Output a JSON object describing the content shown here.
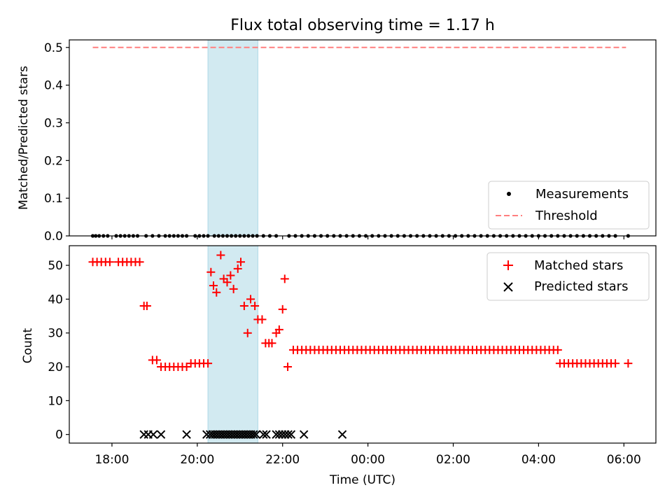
{
  "title": "Flux total observing time = 1.17 h",
  "colors": {
    "measurement": "#000000",
    "threshold": "#ff7f7f",
    "matched": "#ff0000",
    "predicted": "#000000",
    "highlight": "#add8e6"
  },
  "chart_data": [
    {
      "type": "scatter",
      "name": "ratio-panel",
      "ylabel": "Matched/Predicted stars",
      "xlabel": "",
      "xlim": [
        -1.0,
        12.75
      ],
      "ylim": [
        0.0,
        0.52
      ],
      "ytick_values": [
        0.0,
        0.1,
        0.2,
        0.3,
        0.4,
        0.5
      ],
      "ytick_labels": [
        "0.0",
        "0.1",
        "0.2",
        "0.3",
        "0.4",
        "0.5"
      ],
      "legend_location": "lower-right",
      "legend": [
        {
          "key": "measurements",
          "label": "Measurements"
        },
        {
          "key": "threshold",
          "label": "Threshold"
        }
      ],
      "threshold": {
        "value": 0.5,
        "x_start": -0.45,
        "x_end": 12.05
      },
      "highlight_span": [
        2.25,
        3.42
      ],
      "measurements": {
        "x": [
          -0.45,
          -0.38,
          -0.3,
          -0.2,
          -0.1,
          0.1,
          0.2,
          0.3,
          0.4,
          0.5,
          0.6,
          0.8,
          0.95,
          1.1,
          1.25,
          1.35,
          1.45,
          1.55,
          1.65,
          1.75,
          1.95,
          2.05,
          2.15,
          2.25,
          2.4,
          2.5,
          2.6,
          2.7,
          2.8,
          2.9,
          3.0,
          3.1,
          3.2,
          3.3,
          3.4,
          3.55,
          3.7,
          3.85,
          4.15,
          4.3,
          4.45,
          4.6,
          4.75,
          4.9,
          5.05,
          5.2,
          5.35,
          5.5,
          5.65,
          5.8,
          5.95,
          6.1,
          6.25,
          6.4,
          6.55,
          6.7,
          6.85,
          7.0,
          7.15,
          7.3,
          7.45,
          7.6,
          7.75,
          7.9,
          8.05,
          8.2,
          8.35,
          8.5,
          8.65,
          8.8,
          8.95,
          9.1,
          9.25,
          9.4,
          9.55,
          9.7,
          9.85,
          10.0,
          10.15,
          10.3,
          10.45,
          10.6,
          10.75,
          10.9,
          11.05,
          11.2,
          11.35,
          11.5,
          11.65,
          11.8,
          12.1
        ],
        "y": [
          0,
          0,
          0,
          0,
          0,
          0,
          0,
          0,
          0,
          0,
          0,
          0,
          0,
          0,
          0,
          0,
          0,
          0,
          0,
          0,
          0,
          0,
          0,
          0,
          0,
          0,
          0,
          0,
          0,
          0,
          0,
          0,
          0,
          0,
          0,
          0,
          0,
          0,
          0,
          0,
          0,
          0,
          0,
          0,
          0,
          0,
          0,
          0,
          0,
          0,
          0,
          0,
          0,
          0,
          0,
          0,
          0,
          0,
          0,
          0,
          0,
          0,
          0,
          0,
          0,
          0,
          0,
          0,
          0,
          0,
          0,
          0,
          0,
          0,
          0,
          0,
          0,
          0,
          0,
          0,
          0,
          0,
          0,
          0,
          0,
          0,
          0,
          0,
          0,
          0,
          0
        ]
      }
    },
    {
      "type": "scatter",
      "name": "count-panel",
      "ylabel": "Count",
      "xlabel": "Time (UTC)",
      "xlim": [
        -1.0,
        12.75
      ],
      "ylim": [
        -2.55,
        55.8
      ],
      "ytick_values": [
        0,
        10,
        20,
        30,
        40,
        50
      ],
      "ytick_labels": [
        "0",
        "10",
        "20",
        "30",
        "40",
        "50"
      ],
      "xtick_values": [
        0,
        2,
        4,
        6,
        8,
        10,
        12
      ],
      "xtick_labels": [
        "18:00",
        "20:00",
        "22:00",
        "00:00",
        "02:00",
        "04:00",
        "06:00"
      ],
      "legend_location": "upper-right",
      "legend": [
        {
          "key": "matched",
          "label": "Matched stars"
        },
        {
          "key": "predicted",
          "label": "Predicted stars"
        }
      ],
      "highlight_span": [
        2.25,
        3.42
      ],
      "matched": {
        "x": [
          -0.45,
          -0.35,
          -0.25,
          -0.15,
          -0.05,
          0.15,
          0.25,
          0.35,
          0.45,
          0.55,
          0.65,
          0.75,
          0.82,
          0.95,
          1.05,
          1.15,
          1.25,
          1.35,
          1.45,
          1.55,
          1.65,
          1.75,
          1.85,
          1.95,
          2.05,
          2.15,
          2.25,
          2.32,
          2.38,
          2.45,
          2.55,
          2.62,
          2.7,
          2.78,
          2.85,
          2.95,
          3.02,
          3.1,
          3.18,
          3.25,
          3.35,
          3.42,
          3.52,
          3.6,
          3.68,
          3.75,
          3.85,
          3.92,
          4.0,
          4.05,
          4.12,
          4.25,
          4.35,
          4.45,
          4.55,
          4.65,
          4.75,
          4.85,
          4.95,
          5.05,
          5.15,
          5.25,
          5.35,
          5.45,
          5.55,
          5.65,
          5.75,
          5.85,
          5.95,
          6.05,
          6.15,
          6.25,
          6.35,
          6.45,
          6.55,
          6.65,
          6.75,
          6.85,
          6.95,
          7.05,
          7.15,
          7.25,
          7.35,
          7.45,
          7.55,
          7.65,
          7.75,
          7.85,
          7.95,
          8.05,
          8.15,
          8.25,
          8.35,
          8.45,
          8.55,
          8.65,
          8.75,
          8.85,
          8.95,
          9.05,
          9.15,
          9.25,
          9.35,
          9.45,
          9.55,
          9.65,
          9.75,
          9.85,
          9.95,
          10.05,
          10.15,
          10.25,
          10.35,
          10.45,
          10.5,
          10.6,
          10.7,
          10.8,
          10.9,
          11.0,
          11.1,
          11.2,
          11.3,
          11.4,
          11.5,
          11.6,
          11.7,
          11.8,
          12.1
        ],
        "y": [
          51,
          51,
          51,
          51,
          51,
          51,
          51,
          51,
          51,
          51,
          51,
          38,
          38,
          22,
          22,
          20,
          20,
          20,
          20,
          20,
          20,
          20,
          21,
          21,
          21,
          21,
          21,
          48,
          44,
          42,
          53,
          46,
          45,
          47,
          43,
          49,
          51,
          38,
          30,
          40,
          38,
          34,
          34,
          27,
          27,
          27,
          30,
          31,
          37,
          46,
          20,
          25,
          25,
          25,
          25,
          25,
          25,
          25,
          25,
          25,
          25,
          25,
          25,
          25,
          25,
          25,
          25,
          25,
          25,
          25,
          25,
          25,
          25,
          25,
          25,
          25,
          25,
          25,
          25,
          25,
          25,
          25,
          25,
          25,
          25,
          25,
          25,
          25,
          25,
          25,
          25,
          25,
          25,
          25,
          25,
          25,
          25,
          25,
          25,
          25,
          25,
          25,
          25,
          25,
          25,
          25,
          25,
          25,
          25,
          25,
          25,
          25,
          25,
          25,
          21,
          21,
          21,
          21,
          21,
          21,
          21,
          21,
          21,
          21,
          21,
          21,
          21,
          21,
          21
        ]
      },
      "predicted": {
        "x": [
          0.75,
          0.85,
          0.97,
          1.15,
          1.75,
          2.22,
          2.3,
          2.36,
          2.42,
          2.48,
          2.54,
          2.6,
          2.66,
          2.72,
          2.78,
          2.84,
          2.9,
          2.96,
          3.02,
          3.08,
          3.14,
          3.2,
          3.26,
          3.32,
          3.38,
          3.55,
          3.62,
          3.85,
          3.92,
          3.99,
          4.06,
          4.13,
          4.2,
          4.5,
          5.4
        ],
        "y": [
          0,
          0,
          0,
          0,
          0,
          0,
          0,
          0,
          0,
          0,
          0,
          0,
          0,
          0,
          0,
          0,
          0,
          0,
          0,
          0,
          0,
          0,
          0,
          0,
          0,
          0,
          0,
          0,
          0,
          0,
          0,
          0,
          0,
          0,
          0
        ]
      }
    }
  ]
}
